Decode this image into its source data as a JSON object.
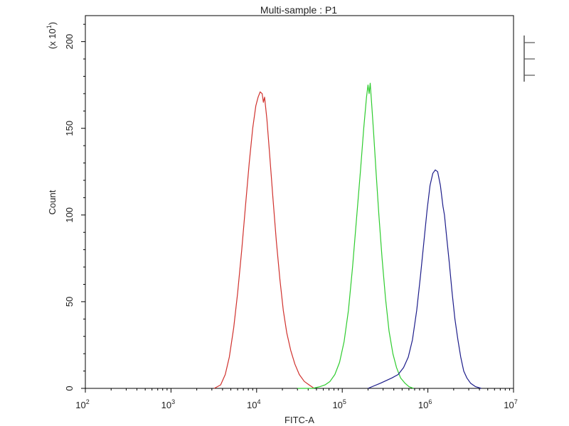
{
  "chart_data": {
    "type": "line",
    "title": "Multi-sample : P1",
    "xlabel": "FITC-A",
    "ylabel": "Count",
    "ylabel_multiplier": {
      "base": "(x 10",
      "exp": "1",
      "close": ")"
    },
    "x_scale": "log",
    "xlim": [
      100,
      10000000
    ],
    "ylim": [
      0,
      215
    ],
    "x_ticks": [
      {
        "base": "10",
        "exp": "2",
        "value": 100
      },
      {
        "base": "10",
        "exp": "3",
        "value": 1000
      },
      {
        "base": "10",
        "exp": "4",
        "value": 10000
      },
      {
        "base": "10",
        "exp": "5",
        "value": 100000
      },
      {
        "base": "10",
        "exp": "6",
        "value": 1000000
      },
      {
        "base": "10",
        "exp": "7",
        "value": 10000000
      }
    ],
    "y_ticks": [
      {
        "label": "0",
        "value": 0
      },
      {
        "label": "50",
        "value": 50
      },
      {
        "label": "100",
        "value": 100
      },
      {
        "label": "150",
        "value": 150
      },
      {
        "label": "200",
        "value": 200
      }
    ],
    "grid": false,
    "legend": "top-right",
    "series": [
      {
        "color": "#d0312d",
        "points": [
          [
            3200,
            0
          ],
          [
            3800,
            2
          ],
          [
            4300,
            8
          ],
          [
            4800,
            18
          ],
          [
            5400,
            35
          ],
          [
            6000,
            55
          ],
          [
            6700,
            80
          ],
          [
            7400,
            105
          ],
          [
            8200,
            130
          ],
          [
            9000,
            150
          ],
          [
            9800,
            163
          ],
          [
            10400,
            168
          ],
          [
            11000,
            171
          ],
          [
            11600,
            170
          ],
          [
            12000,
            165
          ],
          [
            12400,
            168
          ],
          [
            13200,
            155
          ],
          [
            14200,
            135
          ],
          [
            15500,
            110
          ],
          [
            17000,
            85
          ],
          [
            18700,
            63
          ],
          [
            20500,
            45
          ],
          [
            22500,
            32
          ],
          [
            25000,
            22
          ],
          [
            28000,
            14
          ],
          [
            31500,
            8
          ],
          [
            36000,
            4
          ],
          [
            41000,
            2
          ],
          [
            47000,
            0
          ]
        ]
      },
      {
        "color": "#2ecc2e",
        "points": [
          [
            30000,
            0
          ],
          [
            45000,
            0
          ],
          [
            55000,
            1
          ],
          [
            63000,
            2
          ],
          [
            72000,
            4
          ],
          [
            82000,
            8
          ],
          [
            93000,
            15
          ],
          [
            105000,
            27
          ],
          [
            118000,
            45
          ],
          [
            132000,
            70
          ],
          [
            147000,
            98
          ],
          [
            163000,
            125
          ],
          [
            178000,
            150
          ],
          [
            192000,
            168
          ],
          [
            200000,
            175
          ],
          [
            206000,
            170
          ],
          [
            212000,
            176
          ],
          [
            220000,
            165
          ],
          [
            232000,
            148
          ],
          [
            248000,
            125
          ],
          [
            268000,
            100
          ],
          [
            292000,
            75
          ],
          [
            320000,
            52
          ],
          [
            352000,
            33
          ],
          [
            390000,
            20
          ],
          [
            430000,
            12
          ],
          [
            480000,
            6
          ],
          [
            540000,
            3
          ],
          [
            600000,
            1
          ],
          [
            680000,
            0
          ]
        ]
      },
      {
        "color": "#1c1c8a",
        "points": [
          [
            200000,
            0
          ],
          [
            280000,
            3
          ],
          [
            380000,
            6
          ],
          [
            450000,
            8
          ],
          [
            520000,
            12
          ],
          [
            590000,
            18
          ],
          [
            660000,
            28
          ],
          [
            740000,
            45
          ],
          [
            820000,
            65
          ],
          [
            900000,
            85
          ],
          [
            980000,
            103
          ],
          [
            1060000,
            117
          ],
          [
            1140000,
            124
          ],
          [
            1220000,
            126
          ],
          [
            1300000,
            125
          ],
          [
            1400000,
            117
          ],
          [
            1500000,
            105
          ],
          [
            1560000,
            100
          ],
          [
            1650000,
            88
          ],
          [
            1780000,
            72
          ],
          [
            1920000,
            55
          ],
          [
            2070000,
            40
          ],
          [
            2240000,
            28
          ],
          [
            2420000,
            18
          ],
          [
            2620000,
            10
          ],
          [
            2850000,
            6
          ],
          [
            3150000,
            3
          ],
          [
            3600000,
            1
          ],
          [
            4200000,
            0
          ]
        ]
      }
    ]
  }
}
